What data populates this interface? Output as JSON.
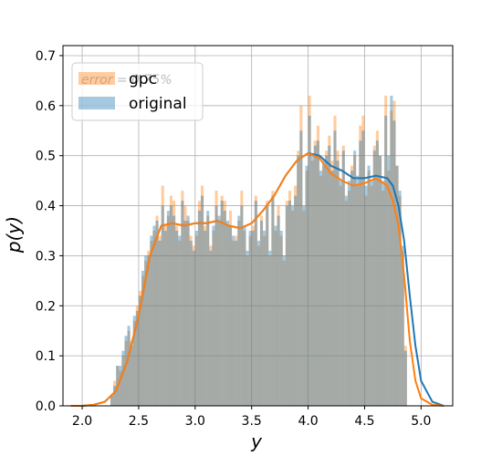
{
  "chart_data": {
    "type": "histogram",
    "title": "",
    "xlabel": "y",
    "ylabel": "p(y)",
    "xlim": [
      1.83,
      5.28
    ],
    "ylim": [
      0,
      0.72
    ],
    "xticks": [
      2.0,
      2.5,
      3.0,
      3.5,
      4.0,
      4.5,
      5.0
    ],
    "xtick_labels": [
      "2.0",
      "2.5",
      "3.0",
      "3.5",
      "4.0",
      "4.5",
      "5.0"
    ],
    "yticks": [
      0.0,
      0.1,
      0.2,
      0.3,
      0.4,
      0.5,
      0.6,
      0.7
    ],
    "ytick_labels": [
      "0.0",
      "0.1",
      "0.2",
      "0.3",
      "0.4",
      "0.5",
      "0.6",
      "0.7"
    ],
    "grid": true,
    "legend": {
      "placement": "top-left",
      "entries": [
        "gpc",
        "original"
      ]
    },
    "annotation": "error = 0.75%",
    "series": [
      {
        "name": "gpc",
        "kind": "histogram",
        "color": "#ff7f0e",
        "bin_start": 2.25,
        "bin_width": 0.025,
        "values": [
          0.02,
          0.05,
          0.08,
          0.07,
          0.1,
          0.13,
          0.15,
          0.13,
          0.17,
          0.2,
          0.23,
          0.26,
          0.29,
          0.31,
          0.33,
          0.35,
          0.38,
          0.34,
          0.44,
          0.36,
          0.38,
          0.42,
          0.41,
          0.36,
          0.33,
          0.43,
          0.4,
          0.37,
          0.34,
          0.32,
          0.34,
          0.41,
          0.44,
          0.36,
          0.38,
          0.32,
          0.35,
          0.43,
          0.37,
          0.42,
          0.41,
          0.36,
          0.39,
          0.33,
          0.34,
          0.37,
          0.43,
          0.35,
          0.3,
          0.34,
          0.36,
          0.42,
          0.32,
          0.38,
          0.34,
          0.41,
          0.3,
          0.43,
          0.35,
          0.4,
          0.34,
          0.29,
          0.41,
          0.43,
          0.39,
          0.44,
          0.51,
          0.6,
          0.39,
          0.47,
          0.62,
          0.49,
          0.53,
          0.56,
          0.46,
          0.48,
          0.51,
          0.54,
          0.49,
          0.58,
          0.51,
          0.44,
          0.52,
          0.41,
          0.43,
          0.48,
          0.5,
          0.44,
          0.56,
          0.58,
          0.42,
          0.47,
          0.44,
          0.52,
          0.55,
          0.5,
          0.43,
          0.62,
          0.47,
          0.59,
          0.61,
          0.48,
          0.42,
          0.31,
          0.12
        ]
      },
      {
        "name": "original",
        "kind": "histogram",
        "color": "#1f77b4",
        "bin_start": 2.25,
        "bin_width": 0.025,
        "values": [
          0.02,
          0.04,
          0.08,
          0.08,
          0.11,
          0.14,
          0.16,
          0.12,
          0.18,
          0.19,
          0.22,
          0.27,
          0.3,
          0.3,
          0.34,
          0.36,
          0.37,
          0.33,
          0.4,
          0.35,
          0.39,
          0.4,
          0.38,
          0.35,
          0.34,
          0.41,
          0.37,
          0.38,
          0.33,
          0.31,
          0.35,
          0.39,
          0.42,
          0.35,
          0.39,
          0.31,
          0.36,
          0.4,
          0.38,
          0.41,
          0.39,
          0.37,
          0.36,
          0.34,
          0.33,
          0.38,
          0.4,
          0.36,
          0.31,
          0.35,
          0.35,
          0.41,
          0.33,
          0.37,
          0.35,
          0.4,
          0.31,
          0.42,
          0.36,
          0.38,
          0.35,
          0.3,
          0.4,
          0.41,
          0.4,
          0.42,
          0.5,
          0.55,
          0.4,
          0.48,
          0.58,
          0.5,
          0.52,
          0.53,
          0.47,
          0.49,
          0.5,
          0.52,
          0.47,
          0.55,
          0.49,
          0.45,
          0.51,
          0.42,
          0.45,
          0.47,
          0.51,
          0.46,
          0.53,
          0.55,
          0.44,
          0.48,
          0.45,
          0.51,
          0.53,
          0.5,
          0.45,
          0.58,
          0.5,
          0.62,
          0.57,
          0.48,
          0.43,
          0.32,
          0.11
        ]
      },
      {
        "name": "original (kde)",
        "kind": "line",
        "color": "#1f77b4",
        "x": [
          1.9,
          2.0,
          2.1,
          2.2,
          2.3,
          2.4,
          2.5,
          2.6,
          2.7,
          2.8,
          2.9,
          3.0,
          3.1,
          3.2,
          3.3,
          3.4,
          3.5,
          3.6,
          3.7,
          3.8,
          3.9,
          4.0,
          4.1,
          4.2,
          4.3,
          4.4,
          4.5,
          4.6,
          4.7,
          4.75,
          4.8,
          4.85,
          4.9,
          4.95,
          5.0,
          5.1,
          5.2
        ],
        "y": [
          0.0,
          0.0,
          0.002,
          0.008,
          0.03,
          0.09,
          0.18,
          0.3,
          0.36,
          0.365,
          0.36,
          0.365,
          0.365,
          0.37,
          0.36,
          0.355,
          0.365,
          0.39,
          0.42,
          0.46,
          0.49,
          0.505,
          0.5,
          0.48,
          0.47,
          0.455,
          0.455,
          0.46,
          0.455,
          0.44,
          0.4,
          0.33,
          0.22,
          0.12,
          0.05,
          0.008,
          0.0
        ]
      },
      {
        "name": "gpc (kde)",
        "kind": "line",
        "color": "#ff7f0e",
        "x": [
          1.9,
          2.0,
          2.1,
          2.2,
          2.3,
          2.4,
          2.5,
          2.6,
          2.7,
          2.8,
          2.9,
          3.0,
          3.1,
          3.2,
          3.3,
          3.4,
          3.5,
          3.6,
          3.7,
          3.8,
          3.9,
          4.0,
          4.1,
          4.2,
          4.3,
          4.4,
          4.5,
          4.6,
          4.7,
          4.75,
          4.8,
          4.85,
          4.9,
          4.95,
          5.0,
          5.1,
          5.2
        ],
        "y": [
          0.0,
          0.0,
          0.002,
          0.008,
          0.03,
          0.09,
          0.18,
          0.3,
          0.36,
          0.365,
          0.36,
          0.365,
          0.365,
          0.37,
          0.36,
          0.355,
          0.365,
          0.39,
          0.42,
          0.46,
          0.49,
          0.505,
          0.495,
          0.465,
          0.45,
          0.44,
          0.445,
          0.455,
          0.44,
          0.41,
          0.36,
          0.26,
          0.13,
          0.05,
          0.015,
          0.002,
          0.0
        ]
      }
    ]
  }
}
